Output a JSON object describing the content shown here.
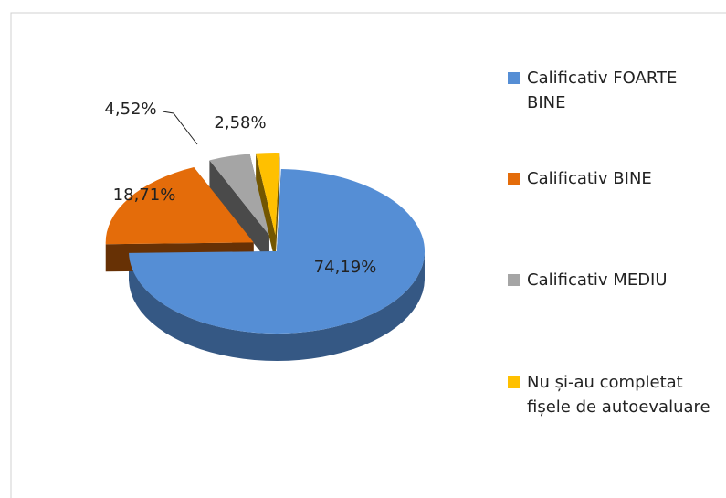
{
  "chart_data": {
    "type": "pie",
    "categories": [
      "Calificativ FOARTE BINE",
      "Calificativ BINE",
      "Calificativ MEDIU",
      "Nu și-au completat fișele de autoevaluare"
    ],
    "values": [
      74.19,
      18.71,
      4.52,
      2.58
    ],
    "value_labels": [
      "74,19%",
      "18,71%",
      "4,52%",
      "2,58%"
    ],
    "colors": [
      "#558ed5",
      "#e46c0a",
      "#a5a5a5",
      "#ffc000"
    ]
  }
}
